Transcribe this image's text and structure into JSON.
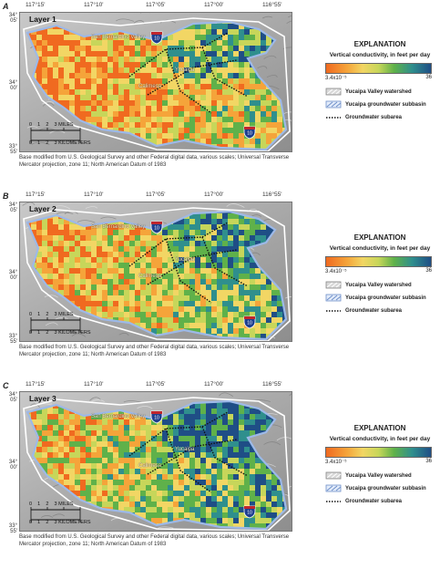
{
  "panels": [
    {
      "letter": "A",
      "layer_label": "Layer 1",
      "lon_ticks": [
        "117°15'",
        "117°10'",
        "117°05'",
        "117°00'",
        "116°55'"
      ],
      "lat_ticks": [
        "34°\n05'",
        "34°\n00'",
        "33°\n55'"
      ],
      "place_labels": [
        "San Bernardino Valley",
        "Yucaipa",
        "Calimesa"
      ],
      "highway_shields": [
        "10",
        "10"
      ],
      "scale_miles": "0    1    2    3 MILES",
      "scale_km": "0    1    2    3 KILOMETERS",
      "credit": "Base modified from U.S. Geological Survey and other Federal digital data, various scales; Universal Transverse Mercator projection, zone 11; North American Datum of 1983"
    },
    {
      "letter": "B",
      "layer_label": "Layer 2",
      "lon_ticks": [
        "117°15'",
        "117°10'",
        "117°05'",
        "117°00'",
        "116°55'"
      ],
      "lat_ticks": [
        "34°\n05'",
        "34°\n00'",
        "33°\n55'"
      ],
      "place_labels": [
        "San Bernardino Valley",
        "Yucaipa",
        "Calimesa"
      ],
      "highway_shields": [
        "10",
        "10"
      ],
      "scale_miles": "0    1    2    3 MILES",
      "scale_km": "0    1    2    3 KILOMETERS",
      "credit": "Base modified from U.S. Geological Survey and other Federal digital data, various scales; Universal Transverse Mercator projection, zone 11; North American Datum of 1983"
    },
    {
      "letter": "C",
      "layer_label": "Layer 3",
      "lon_ticks": [
        "117°15'",
        "117°10'",
        "117°05'",
        "117°00'",
        "116°55'"
      ],
      "lat_ticks": [
        "34°\n05'",
        "34°\n00'",
        "33°\n55'"
      ],
      "place_labels": [
        "San Bernardino Valley",
        "Yucaipa",
        "Calimesa"
      ],
      "highway_shields": [
        "10",
        "10"
      ],
      "scale_miles": "0    1    2    3 MILES",
      "scale_km": "0    1    2    3 KILOMETERS",
      "credit": "Base modified from U.S. Geological Survey and other Federal digital data, various scales; Universal Transverse Mercator projection, zone 11; North American Datum of 1983"
    }
  ],
  "legend": {
    "title": "EXPLANATION",
    "subtitle": "Vertical conductivity, in feet per day",
    "min_label": "3.4x10⁻⁵",
    "max_label": "36",
    "items": [
      {
        "label": "Yucaipa Valley watershed",
        "icon": "watershed-swatch"
      },
      {
        "label": "Yucaipa groundwater subbasin",
        "icon": "subbasin-swatch"
      },
      {
        "label": "Groundwater subarea",
        "icon": "dotted-line"
      }
    ],
    "colors": {
      "low": "#f06a20",
      "mid": "#f2d664",
      "high": "#1f4e86",
      "watershed": "#ffffff",
      "subbasin": "#9db9e8",
      "subarea": "#111111"
    }
  }
}
